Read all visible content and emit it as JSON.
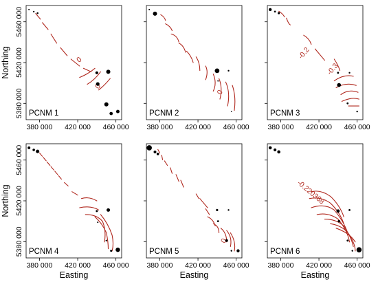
{
  "chart_data": {
    "type": "scatter",
    "x_axis": {
      "label": "Easting",
      "ticks": [
        "380 000",
        "420 000",
        "460 000"
      ],
      "tick_values": [
        380000,
        420000,
        460000
      ]
    },
    "y_axis": {
      "label": "Northing",
      "ticks": [
        "5380 000",
        "5420 000",
        "5460 000"
      ],
      "tick_values": [
        5380000,
        5420000,
        5460000
      ]
    },
    "xlim": [
      366000,
      466000
    ],
    "ylim": [
      5364000,
      5476000
    ],
    "grid": false,
    "contour_color": "#b0281e",
    "site_color": "#000000",
    "panels": [
      {
        "title": "PCNM 1",
        "contour_labels": [
          "0",
          "0"
        ],
        "sites": [
          {
            "x": 369000,
            "y": 5472000,
            "s": 1
          },
          {
            "x": 374000,
            "y": 5470000,
            "s": 1.2
          },
          {
            "x": 378000,
            "y": 5468500,
            "s": 1.3
          },
          {
            "x": 440000,
            "y": 5410000,
            "s": 2.1
          },
          {
            "x": 452000,
            "y": 5411000,
            "s": 3
          },
          {
            "x": 441000,
            "y": 5399000,
            "s": 2.6
          },
          {
            "x": 450000,
            "y": 5379000,
            "s": 3
          },
          {
            "x": 455000,
            "y": 5370000,
            "s": 2.4
          },
          {
            "x": 462000,
            "y": 5372000,
            "s": 2.5
          }
        ]
      },
      {
        "title": "PCNM 2",
        "contour_labels": [
          "0"
        ],
        "sites": [
          {
            "x": 369000,
            "y": 5472000,
            "s": 1
          },
          {
            "x": 375000,
            "y": 5468000,
            "s": 3
          },
          {
            "x": 440000,
            "y": 5412000,
            "s": 3.4
          },
          {
            "x": 452000,
            "y": 5412000,
            "s": 1.2
          },
          {
            "x": 441000,
            "y": 5402000,
            "s": 1
          },
          {
            "x": 455000,
            "y": 5372000,
            "s": 0.8
          }
        ]
      },
      {
        "title": "PCNM 3",
        "contour_labels": [
          "-0.2",
          "-0.3"
        ],
        "sites": [
          {
            "x": 369000,
            "y": 5472000,
            "s": 2.2
          },
          {
            "x": 374000,
            "y": 5470000,
            "s": 1.4
          },
          {
            "x": 378000,
            "y": 5468500,
            "s": 1.6
          },
          {
            "x": 440000,
            "y": 5410000,
            "s": 1.4
          },
          {
            "x": 452000,
            "y": 5410000,
            "s": 1.2
          },
          {
            "x": 441000,
            "y": 5398000,
            "s": 2.8
          },
          {
            "x": 450000,
            "y": 5380000,
            "s": 1.4
          },
          {
            "x": 460000,
            "y": 5372000,
            "s": 1.2
          }
        ]
      },
      {
        "title": "PCNM 4",
        "contour_labels": [],
        "sites": [
          {
            "x": 369000,
            "y": 5472000,
            "s": 2
          },
          {
            "x": 374000,
            "y": 5470000,
            "s": 1.8
          },
          {
            "x": 378000,
            "y": 5468500,
            "s": 2.5
          },
          {
            "x": 440000,
            "y": 5410000,
            "s": 1.5
          },
          {
            "x": 452000,
            "y": 5411000,
            "s": 2.5
          },
          {
            "x": 441000,
            "y": 5399000,
            "s": 1
          },
          {
            "x": 450000,
            "y": 5381000,
            "s": 1.2
          },
          {
            "x": 455000,
            "y": 5371000,
            "s": 1.5
          },
          {
            "x": 462000,
            "y": 5372000,
            "s": 3.2
          }
        ]
      },
      {
        "title": "PCNM 5",
        "contour_labels": [
          "0"
        ],
        "sites": [
          {
            "x": 369000,
            "y": 5472000,
            "s": 3.8
          },
          {
            "x": 375000,
            "y": 5468000,
            "s": 2
          },
          {
            "x": 378000,
            "y": 5466000,
            "s": 1.8
          },
          {
            "x": 440000,
            "y": 5411000,
            "s": 1.6
          },
          {
            "x": 452000,
            "y": 5411000,
            "s": 1.2
          },
          {
            "x": 441000,
            "y": 5400000,
            "s": 1.4
          },
          {
            "x": 450000,
            "y": 5381000,
            "s": 2
          },
          {
            "x": 455000,
            "y": 5371000,
            "s": 1.2
          },
          {
            "x": 462000,
            "y": 5371000,
            "s": 2.2
          }
        ]
      },
      {
        "title": "PCNM 6",
        "contour_labels": [
          "-0.220368"
        ],
        "sites": [
          {
            "x": 369000,
            "y": 5472000,
            "s": 2.3
          },
          {
            "x": 374000,
            "y": 5470000,
            "s": 2.1
          },
          {
            "x": 378000,
            "y": 5468000,
            "s": 2.3
          },
          {
            "x": 440000,
            "y": 5410000,
            "s": 2.4
          },
          {
            "x": 452000,
            "y": 5411000,
            "s": 1.4
          },
          {
            "x": 441000,
            "y": 5400000,
            "s": 1.8
          },
          {
            "x": 450000,
            "y": 5381000,
            "s": 1.4
          },
          {
            "x": 455000,
            "y": 5371000,
            "s": 1.2
          },
          {
            "x": 462000,
            "y": 5372000,
            "s": 3.8
          }
        ]
      }
    ]
  }
}
